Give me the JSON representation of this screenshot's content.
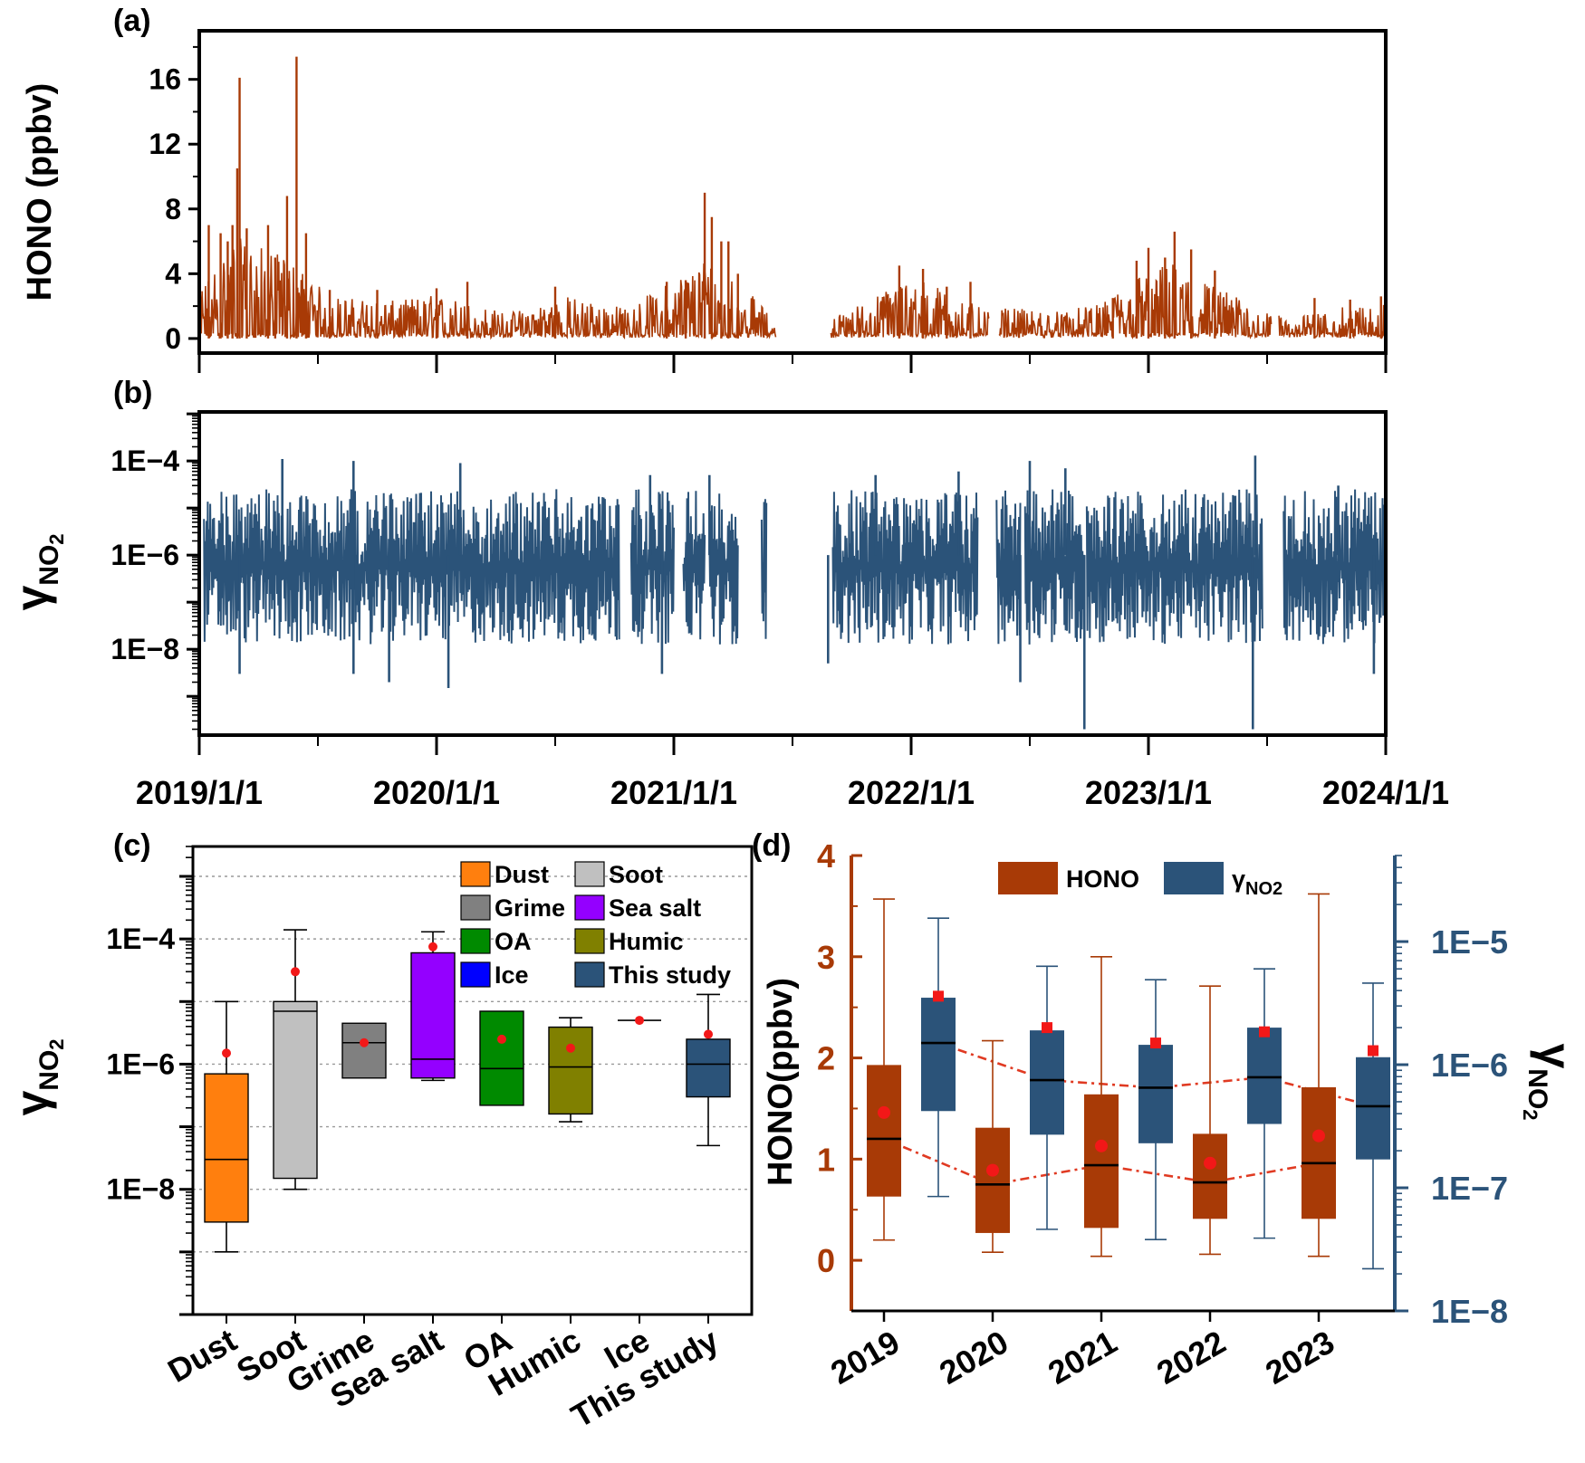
{
  "panels": {
    "a": "(a)",
    "b": "(b)",
    "c": "(c)",
    "d": "(d)"
  },
  "colors": {
    "hono": "#A83A06",
    "gamma": "#2B5379",
    "mean_marker": "#F21818",
    "trend": "#E03A22"
  },
  "chart_data": [
    {
      "id": "a",
      "type": "line",
      "title": "",
      "xlabel": "",
      "ylabel": "HONO (ppbv)",
      "ylim": [
        -0.9,
        19.0
      ],
      "yticks": [
        0,
        4,
        8,
        12,
        16
      ],
      "ytick_labels": [
        "0",
        "4",
        "8",
        "12",
        "16"
      ],
      "xlim": [
        2019.0,
        2024.0
      ],
      "series": [
        {
          "name": "HONO",
          "color": "#A83A06",
          "gaps": [
            [
              2021.43,
              2021.66
            ],
            [
              2022.33,
              2022.37
            ],
            [
              2023.52,
              2023.55
            ]
          ],
          "envelope": [
            [
              2019.0,
              3.0
            ],
            [
              2019.15,
              6.0
            ],
            [
              2019.25,
              5.5
            ],
            [
              2019.4,
              4.5
            ],
            [
              2019.55,
              2.5
            ],
            [
              2019.8,
              2.2
            ],
            [
              2020.0,
              2.6
            ],
            [
              2020.3,
              1.5
            ],
            [
              2020.55,
              2.5
            ],
            [
              2020.8,
              1.8
            ],
            [
              2021.0,
              3.5
            ],
            [
              2021.15,
              5.0
            ],
            [
              2021.3,
              3.0
            ],
            [
              2021.43,
              1.0
            ],
            [
              2021.66,
              1.2
            ],
            [
              2021.85,
              2.5
            ],
            [
              2022.0,
              3.8
            ],
            [
              2022.2,
              2.5
            ],
            [
              2022.33,
              1.5
            ],
            [
              2022.4,
              1.8
            ],
            [
              2022.6,
              1.6
            ],
            [
              2022.8,
              2.0
            ],
            [
              2022.95,
              3.8
            ],
            [
              2023.1,
              4.5
            ],
            [
              2023.3,
              3.0
            ],
            [
              2023.5,
              1.5
            ],
            [
              2023.6,
              1.2
            ],
            [
              2023.8,
              1.8
            ],
            [
              2024.0,
              2.2
            ]
          ],
          "peaks": [
            [
              2019.04,
              7.0
            ],
            [
              2019.09,
              6.5
            ],
            [
              2019.12,
              6.0
            ],
            [
              2019.14,
              7.0
            ],
            [
              2019.16,
              10.5
            ],
            [
              2019.17,
              16.1
            ],
            [
              2019.2,
              6.8
            ],
            [
              2019.29,
              7.0
            ],
            [
              2019.32,
              5.0
            ],
            [
              2019.37,
              8.8
            ],
            [
              2019.41,
              17.4
            ],
            [
              2019.45,
              6.5
            ],
            [
              2019.55,
              3.0
            ],
            [
              2019.75,
              3.0
            ],
            [
              2020.0,
              3.1
            ],
            [
              2020.13,
              3.5
            ],
            [
              2020.5,
              3.2
            ],
            [
              2020.97,
              3.5
            ],
            [
              2021.05,
              3.6
            ],
            [
              2021.13,
              9.0
            ],
            [
              2021.16,
              7.5
            ],
            [
              2021.2,
              6.0
            ],
            [
              2021.23,
              6.0
            ],
            [
              2021.27,
              4.0
            ],
            [
              2021.95,
              4.5
            ],
            [
              2022.05,
              4.3
            ],
            [
              2022.15,
              3.2
            ],
            [
              2022.25,
              3.5
            ],
            [
              2022.85,
              2.5
            ],
            [
              2022.95,
              4.8
            ],
            [
              2023.0,
              5.6
            ],
            [
              2023.07,
              5.0
            ],
            [
              2023.11,
              6.6
            ],
            [
              2023.18,
              5.5
            ],
            [
              2023.28,
              4.2
            ],
            [
              2023.7,
              2.5
            ],
            [
              2023.85,
              2.4
            ],
            [
              2023.98,
              2.6
            ]
          ]
        }
      ]
    },
    {
      "id": "b",
      "type": "line",
      "title": "",
      "xlabel": "",
      "ylabel_main": "γ",
      "ylabel_sub": "NO",
      "ylabel_subsub": "2",
      "yscale": "log",
      "ylim": [
        1.5e-10,
        0.0011
      ],
      "yticks": [
        1e-08,
        1e-06,
        0.0001
      ],
      "ytick_labels": [
        "1E−8",
        "1E−6",
        "1E−4"
      ],
      "xlim": [
        2019.0,
        2024.0
      ],
      "xticks": [
        2019.0,
        2020.0,
        2021.0,
        2022.0,
        2023.0,
        2024.0
      ],
      "xtick_labels": [
        "2019/1/1",
        "2020/1/1",
        "2021/1/1",
        "2022/1/1",
        "2023/1/1",
        "2024/1/1"
      ],
      "series": [
        {
          "name": "γNO2",
          "color": "#2B5379",
          "segments": [
            [
              2019.02,
              2019.83
            ],
            [
              2019.83,
              2020.4
            ],
            [
              2020.4,
              2020.77
            ],
            [
              2020.82,
              2021.0
            ],
            [
              2021.04,
              2021.13
            ],
            [
              2021.15,
              2021.27
            ],
            [
              2021.37,
              2021.39
            ],
            [
              2021.67,
              2022.28
            ],
            [
              2022.36,
              2022.46
            ],
            [
              2022.48,
              2022.73
            ],
            [
              2022.74,
              2023.48
            ],
            [
              2023.57,
              2024.0
            ]
          ],
          "upper_log10": -4.6,
          "lower_log10": -7.9,
          "spikes_high": [
            [
              2019.35,
              0.00011
            ],
            [
              2019.65,
              0.0001
            ],
            [
              2020.1,
              9e-05
            ],
            [
              2020.9,
              5e-05
            ],
            [
              2021.15,
              5e-05
            ],
            [
              2021.85,
              5e-05
            ],
            [
              2022.2,
              6e-05
            ],
            [
              2022.5,
              0.0001
            ],
            [
              2022.65,
              7e-05
            ],
            [
              2023.45,
              0.00013
            ],
            [
              2023.8,
              3e-05
            ]
          ],
          "spikes_low": [
            [
              2019.17,
              3e-09
            ],
            [
              2019.65,
              3e-09
            ],
            [
              2019.8,
              2e-09
            ],
            [
              2020.05,
              1.5e-09
            ],
            [
              2020.95,
              3e-09
            ],
            [
              2021.65,
              5e-09
            ],
            [
              2022.46,
              2e-09
            ],
            [
              2022.73,
              2e-10
            ],
            [
              2023.44,
              2e-10
            ],
            [
              2023.95,
              3e-09
            ]
          ]
        }
      ]
    },
    {
      "id": "c",
      "type": "box",
      "title": "",
      "xlabel": "",
      "ylabel_main": "γ",
      "ylabel_sub": "NO",
      "ylabel_subsub": "2",
      "yscale": "log",
      "ylim": [
        1e-10,
        0.003
      ],
      "yticks": [
        1e-08,
        1e-06,
        0.0001
      ],
      "ytick_labels": [
        "1E−8",
        "1E−6",
        "1E−4"
      ],
      "gridlines": [
        1e-09,
        1e-07,
        1e-05,
        0.001
      ],
      "categories": [
        "Dust",
        "Soot",
        "Grime",
        "Sea salt",
        "OA",
        "Humic",
        "Ice",
        "This study"
      ],
      "boxes": [
        {
          "name": "Dust",
          "color": "#FF7F0E",
          "whisker_low": 1e-09,
          "q1": 3e-09,
          "median": 3e-08,
          "q3": 7e-07,
          "whisker_high": 1e-05,
          "mean": 1.5e-06
        },
        {
          "name": "Soot",
          "color": "#C0C0C0",
          "whisker_low": 1e-08,
          "q1": 1.5e-08,
          "median": 7e-06,
          "q3": 1e-05,
          "whisker_high": 0.00014,
          "mean": 3e-05
        },
        {
          "name": "Grime",
          "color": "#808080",
          "whisker_low": null,
          "q1": 6e-07,
          "median": 2.2e-06,
          "q3": 4.5e-06,
          "whisker_high": null,
          "mean": 2.2e-06
        },
        {
          "name": "Sea salt",
          "color": "#9400FF",
          "whisker_low": 5.5e-07,
          "q1": 6e-07,
          "median": 1.2e-06,
          "q3": 6e-05,
          "whisker_high": 0.00013,
          "mean": 7.5e-05
        },
        {
          "name": "OA",
          "color": "#008A00",
          "whisker_low": null,
          "q1": 2.2e-07,
          "median": 8.5e-07,
          "q3": 7e-06,
          "whisker_high": null,
          "mean": 2.5e-06
        },
        {
          "name": "Humic",
          "color": "#808000",
          "whisker_low": 1.2e-07,
          "q1": 1.6e-07,
          "median": 9e-07,
          "q3": 3.9e-06,
          "whisker_high": 5.5e-06,
          "mean": 1.8e-06
        },
        {
          "name": "Ice",
          "color": "#0000FF",
          "whisker_low": null,
          "q1": null,
          "median": 5e-06,
          "q3": null,
          "whisker_high": null,
          "mean": 5e-06
        },
        {
          "name": "This study",
          "color": "#2B5379",
          "whisker_low": 5e-08,
          "q1": 3e-07,
          "median": 1e-06,
          "q3": 2.5e-06,
          "whisker_high": 1.3e-05,
          "mean": 3e-06
        }
      ],
      "legend": {
        "position": "top-right",
        "entries": [
          {
            "label": "Dust",
            "color": "#FF7F0E"
          },
          {
            "label": "Soot",
            "color": "#C0C0C0"
          },
          {
            "label": "Grime",
            "color": "#808080"
          },
          {
            "label": "Sea salt",
            "color": "#9400FF"
          },
          {
            "label": "OA",
            "color": "#008A00"
          },
          {
            "label": "Humic",
            "color": "#808000"
          },
          {
            "label": "Ice",
            "color": "#0000FF"
          },
          {
            "label": "This study",
            "color": "#2B5379"
          }
        ]
      }
    },
    {
      "id": "d",
      "type": "box",
      "title": "",
      "xlabel": "",
      "categories": [
        "2019",
        "2020",
        "2021",
        "2022",
        "2023"
      ],
      "left_axis": {
        "label": "HONO(ppbv)",
        "ylim": [
          -0.5,
          4.0
        ],
        "yticks": [
          0,
          1,
          2,
          3,
          4
        ],
        "ytick_labels": [
          "0",
          "1",
          "2",
          "3",
          "4"
        ],
        "color": "#A83A06"
      },
      "right_axis": {
        "label_main": "γ",
        "label_sub": "NO",
        "label_subsub": "2",
        "scale": "log",
        "ylim": [
          1e-08,
          5e-05
        ],
        "yticks": [
          1e-08,
          1e-07,
          1e-06,
          1e-05
        ],
        "ytick_labels": [
          "1E−8",
          "1E−7",
          "1E−6",
          "1E−5"
        ],
        "color": "#2B5379"
      },
      "series": [
        {
          "name": "HONO",
          "color": "#A83A06",
          "boxes": [
            {
              "year": "2019",
              "whisker_low": 0.2,
              "q1": 0.63,
              "median": 1.2,
              "q3": 1.93,
              "whisker_high": 3.57,
              "mean": 1.46
            },
            {
              "year": "2020",
              "whisker_low": 0.08,
              "q1": 0.27,
              "median": 0.75,
              "q3": 1.31,
              "whisker_high": 2.17,
              "mean": 0.89
            },
            {
              "year": "2021",
              "whisker_low": 0.04,
              "q1": 0.32,
              "median": 0.94,
              "q3": 1.64,
              "whisker_high": 3.0,
              "mean": 1.13
            },
            {
              "year": "2022",
              "whisker_low": 0.06,
              "q1": 0.41,
              "median": 0.77,
              "q3": 1.25,
              "whisker_high": 2.71,
              "mean": 0.96
            },
            {
              "year": "2023",
              "whisker_low": 0.04,
              "q1": 0.41,
              "median": 0.96,
              "q3": 1.71,
              "whisker_high": 3.62,
              "mean": 1.23
            }
          ]
        },
        {
          "name": "γNO2",
          "color": "#2B5379",
          "boxes": [
            {
              "year": "2019",
              "whisker_low": 8.5e-08,
              "q1": 4.2e-07,
              "median": 1.5e-06,
              "q3": 3.5e-06,
              "whisker_high": 1.55e-05,
              "mean": 3.6e-06
            },
            {
              "year": "2020",
              "whisker_low": 4.6e-08,
              "q1": 2.7e-07,
              "median": 7.5e-07,
              "q3": 1.9e-06,
              "whisker_high": 6.3e-06,
              "mean": 2e-06
            },
            {
              "year": "2021",
              "whisker_low": 3.8e-08,
              "q1": 2.3e-07,
              "median": 6.5e-07,
              "q3": 1.45e-06,
              "whisker_high": 4.9e-06,
              "mean": 1.5e-06
            },
            {
              "year": "2022",
              "whisker_low": 3.9e-08,
              "q1": 3.3e-07,
              "median": 7.9e-07,
              "q3": 2e-06,
              "whisker_high": 6e-06,
              "mean": 1.85e-06
            },
            {
              "year": "2023",
              "whisker_low": 2.2e-08,
              "q1": 1.7e-07,
              "median": 4.6e-07,
              "q3": 1.15e-06,
              "whisker_high": 4.6e-06,
              "mean": 1.3e-06
            }
          ]
        }
      ],
      "legend": {
        "position": "top-center",
        "entries": [
          {
            "label": "HONO",
            "color": "#A83A06"
          },
          {
            "label_main": "γ",
            "label_sub": "NO2",
            "color": "#2B5379"
          }
        ]
      }
    }
  ]
}
